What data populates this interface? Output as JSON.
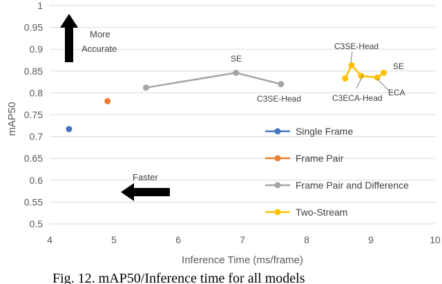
{
  "chart_data": {
    "type": "scatter",
    "xlabel": "Inference Time (ms/frame)",
    "ylabel": "mAP50",
    "xlim": [
      4,
      10
    ],
    "ylim": [
      0.5,
      1
    ],
    "xticks": [
      "4",
      "5",
      "6",
      "7",
      "8",
      "9",
      "10"
    ],
    "yticks": [
      "0.5",
      "0.55",
      "0.6",
      "0.65",
      "0.7",
      "0.75",
      "0.8",
      "0.85",
      "0.9",
      "0.95",
      "1"
    ],
    "grid": "horizontal",
    "legend_position": "right",
    "series": [
      {
        "name": "Single Frame",
        "color": "#4472C4",
        "line": false,
        "points": [
          {
            "x": 4.3,
            "y": 0.717
          }
        ]
      },
      {
        "name": "Frame Pair",
        "color": "#ED7D31",
        "line": false,
        "points": [
          {
            "x": 4.9,
            "y": 0.781
          }
        ]
      },
      {
        "name": "Frame Pair and Difference",
        "color": "#A5A5A5",
        "line": true,
        "points": [
          {
            "x": 5.5,
            "y": 0.812
          },
          {
            "x": 6.9,
            "y": 0.846
          },
          {
            "x": 7.6,
            "y": 0.82
          }
        ]
      },
      {
        "name": "Two-Stream",
        "color": "#FFC000",
        "line": true,
        "points": [
          {
            "x": 8.6,
            "y": 0.833
          },
          {
            "x": 8.7,
            "y": 0.863
          },
          {
            "x": 8.85,
            "y": 0.839
          },
          {
            "x": 9.1,
            "y": 0.835
          },
          {
            "x": 9.2,
            "y": 0.846
          }
        ]
      }
    ],
    "annotations": {
      "more_accurate_line1": "More",
      "more_accurate_line2": "Accurate",
      "faster": "Faster",
      "se_gray": "SE",
      "c3se_head_gray": "C3SE-Head",
      "c3se_head_yellow": "C3SE-Head",
      "se_yellow": "SE",
      "c3eca_head": "C3ECA-Head",
      "eca": "ECA"
    }
  },
  "caption": "Fig. 12. mAP50/Inference time for all models"
}
